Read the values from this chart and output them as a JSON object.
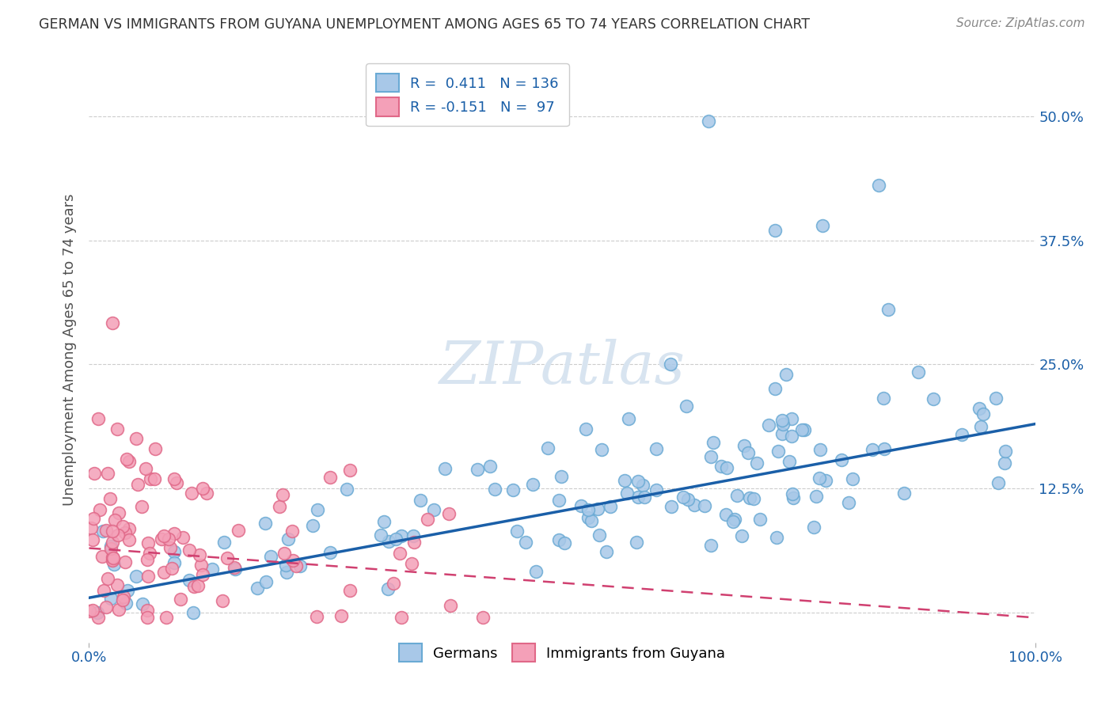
{
  "title": "GERMAN VS IMMIGRANTS FROM GUYANA UNEMPLOYMENT AMONG AGES 65 TO 74 YEARS CORRELATION CHART",
  "source": "Source: ZipAtlas.com",
  "ylabel": "Unemployment Among Ages 65 to 74 years",
  "ytick_vals": [
    0.0,
    0.125,
    0.25,
    0.375,
    0.5
  ],
  "ytick_labels": [
    "",
    "12.5%",
    "25.0%",
    "37.5%",
    "50.0%"
  ],
  "xmin": 0.0,
  "xmax": 1.0,
  "ymin": -0.03,
  "ymax": 0.56,
  "blue_dot_face": "#a8c8e8",
  "blue_dot_edge": "#6aaad4",
  "pink_dot_face": "#f4a0b8",
  "pink_dot_edge": "#e06888",
  "blue_line_color": "#1a5fa8",
  "pink_line_color": "#d04070",
  "grid_color": "#cccccc",
  "title_color": "#333333",
  "source_color": "#888888",
  "watermark_color": "#d8e4f0",
  "seed": 42,
  "blue_R": 0.411,
  "blue_N": 136,
  "pink_R": -0.151,
  "pink_N": 97,
  "blue_slope": 0.175,
  "blue_intercept": 0.015,
  "pink_slope": -0.07,
  "pink_intercept": 0.065
}
